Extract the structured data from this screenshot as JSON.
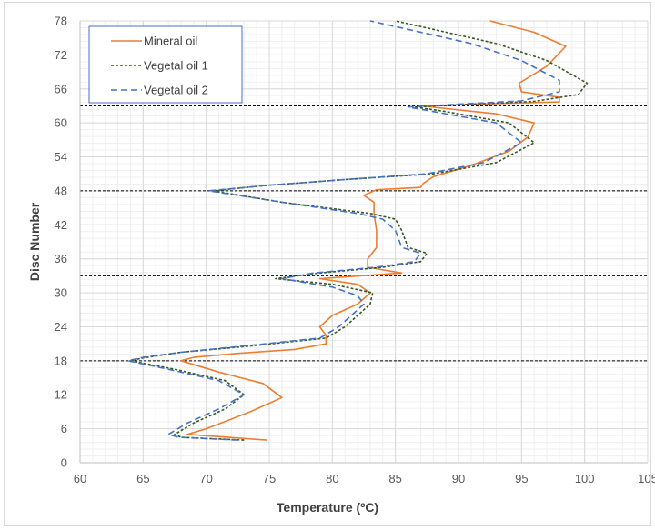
{
  "chart_data": {
    "type": "line",
    "title": "",
    "xlabel": "Temperature (ºC)",
    "ylabel": "Disc Number",
    "xlim": [
      60,
      105
    ],
    "ylim": [
      0,
      78
    ],
    "xticks": [
      60,
      65,
      70,
      75,
      80,
      85,
      90,
      95,
      100,
      105
    ],
    "yticks": [
      0,
      6,
      12,
      18,
      24,
      30,
      36,
      42,
      48,
      54,
      60,
      66,
      72,
      78
    ],
    "grid": "major and minor",
    "legend_position": "top-left",
    "reference_lines_y": [
      18,
      33,
      48,
      63
    ],
    "series": [
      {
        "name": "Mineral oil",
        "color": "#ED7D31",
        "dash": "solid",
        "points": [
          [
            74.8,
            4
          ],
          [
            68.5,
            5
          ],
          [
            70,
            6
          ],
          [
            73.5,
            9
          ],
          [
            76,
            11.5
          ],
          [
            74.5,
            14
          ],
          [
            71,
            16
          ],
          [
            68,
            18
          ],
          [
            69,
            18.6
          ],
          [
            72.5,
            19.3
          ],
          [
            77,
            20
          ],
          [
            79.5,
            21
          ],
          [
            79.5,
            22.5
          ],
          [
            79,
            24
          ],
          [
            80,
            26
          ],
          [
            82,
            28
          ],
          [
            83,
            30
          ],
          [
            82,
            31.5
          ],
          [
            79,
            32.5
          ],
          [
            85.5,
            33.5
          ],
          [
            82.8,
            34.5
          ],
          [
            82.8,
            36
          ],
          [
            83.5,
            38
          ],
          [
            83.5,
            41
          ],
          [
            83.3,
            44
          ],
          [
            83.3,
            46
          ],
          [
            82.5,
            47.2
          ],
          [
            83.5,
            48.2
          ],
          [
            87,
            48.6
          ],
          [
            87.2,
            49.3
          ],
          [
            88,
            50.5
          ],
          [
            91,
            52.5
          ],
          [
            94,
            55
          ],
          [
            95.5,
            57.5
          ],
          [
            96,
            60
          ],
          [
            93,
            61.6
          ],
          [
            87,
            63
          ],
          [
            93,
            63.4
          ],
          [
            98,
            63.7
          ],
          [
            98,
            64.5
          ],
          [
            95,
            65.5
          ],
          [
            94.8,
            67
          ],
          [
            97,
            70
          ],
          [
            98.5,
            73.5
          ],
          [
            96,
            76
          ],
          [
            92.5,
            78
          ]
        ]
      },
      {
        "name": "Vegetal oil 1",
        "color": "#375623",
        "dash": "dotted",
        "points": [
          [
            73,
            4
          ],
          [
            68,
            4.5
          ],
          [
            67.5,
            5
          ],
          [
            69,
            7
          ],
          [
            71.5,
            9.5
          ],
          [
            73,
            12
          ],
          [
            71.5,
            14.5
          ],
          [
            67.5,
            16.5
          ],
          [
            64,
            18
          ],
          [
            65,
            18.5
          ],
          [
            68,
            19.5
          ],
          [
            73,
            20.5
          ],
          [
            79.5,
            22
          ],
          [
            81,
            24
          ],
          [
            83,
            28
          ],
          [
            83.2,
            30
          ],
          [
            80,
            31.5
          ],
          [
            75.5,
            32.5
          ],
          [
            79,
            33.5
          ],
          [
            84,
            34.5
          ],
          [
            87,
            35.5
          ],
          [
            87.5,
            37
          ],
          [
            86,
            38
          ],
          [
            85.5,
            41
          ],
          [
            85,
            43
          ],
          [
            83,
            44
          ],
          [
            76,
            46
          ],
          [
            70.5,
            48
          ],
          [
            75,
            49
          ],
          [
            81,
            50
          ],
          [
            88,
            51
          ],
          [
            93,
            53
          ],
          [
            96,
            56.5
          ],
          [
            94,
            60
          ],
          [
            89,
            62
          ],
          [
            86.5,
            62.8
          ],
          [
            90,
            63.2
          ],
          [
            96,
            63.8
          ],
          [
            99.5,
            65
          ],
          [
            100.2,
            67
          ],
          [
            97,
            71
          ],
          [
            93,
            74
          ],
          [
            88,
            76.5
          ],
          [
            85,
            78
          ]
        ]
      },
      {
        "name": "Vegetal oil 2",
        "color": "#4472C4",
        "dash": "dashed",
        "points": [
          [
            72.5,
            4
          ],
          [
            67.8,
            4.5
          ],
          [
            67,
            5
          ],
          [
            68.5,
            7
          ],
          [
            71,
            9.5
          ],
          [
            73,
            12
          ],
          [
            71,
            14.5
          ],
          [
            67,
            16.5
          ],
          [
            63.8,
            18
          ],
          [
            65,
            18.6
          ],
          [
            68,
            19.5
          ],
          [
            72.5,
            20.5
          ],
          [
            79,
            22
          ],
          [
            80.5,
            24
          ],
          [
            82.5,
            28
          ],
          [
            82,
            29.5
          ],
          [
            80,
            31
          ],
          [
            76,
            32.5
          ],
          [
            78.5,
            33.5
          ],
          [
            83.5,
            34.5
          ],
          [
            86.5,
            35.5
          ],
          [
            87,
            37
          ],
          [
            85.5,
            38
          ],
          [
            85,
            41
          ],
          [
            84,
            43
          ],
          [
            82,
            44
          ],
          [
            76,
            46
          ],
          [
            70.2,
            48
          ],
          [
            75,
            49
          ],
          [
            81,
            50
          ],
          [
            87.5,
            51
          ],
          [
            92,
            53
          ],
          [
            95,
            56.5
          ],
          [
            93,
            60
          ],
          [
            88,
            62
          ],
          [
            86,
            62.8
          ],
          [
            90,
            63.3
          ],
          [
            95,
            63.9
          ],
          [
            98,
            65.5
          ],
          [
            98,
            67.5
          ],
          [
            95,
            71
          ],
          [
            91,
            74
          ],
          [
            86,
            76.5
          ],
          [
            83,
            78
          ]
        ]
      }
    ]
  }
}
